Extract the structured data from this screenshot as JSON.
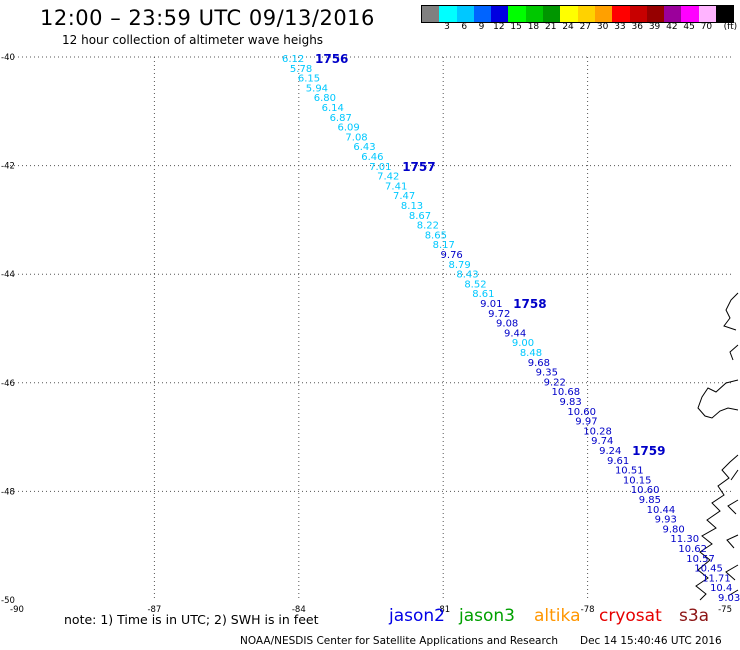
{
  "header": {
    "title": "12:00 – 23:59 UTC 09/13/2016",
    "subtitle": "12 hour collection of altimeter wave heighs"
  },
  "legend": {
    "unit": "(ft)",
    "swatches": [
      {
        "color": "#808080",
        "label": ""
      },
      {
        "color": "#00ffff",
        "label": "3"
      },
      {
        "color": "#00c8ff",
        "label": "6"
      },
      {
        "color": "#0064ff",
        "label": "9"
      },
      {
        "color": "#0000e0",
        "label": "12"
      },
      {
        "color": "#00ff00",
        "label": "15"
      },
      {
        "color": "#00c800",
        "label": "18"
      },
      {
        "color": "#009600",
        "label": "21"
      },
      {
        "color": "#ffff00",
        "label": "24"
      },
      {
        "color": "#ffd200",
        "label": "27"
      },
      {
        "color": "#ffa000",
        "label": "30"
      },
      {
        "color": "#ff0000",
        "label": "33"
      },
      {
        "color": "#c80000",
        "label": "36"
      },
      {
        "color": "#960000",
        "label": "39"
      },
      {
        "color": "#9b009b",
        "label": "42"
      },
      {
        "color": "#ff00ff",
        "label": "45"
      },
      {
        "color": "#ffb4ff",
        "label": "70"
      },
      {
        "color": "#000000",
        "label": ""
      }
    ]
  },
  "map_data": {
    "lon_range": [
      -90,
      -75
    ],
    "lat_range": [
      -50,
      -40
    ],
    "lon_ticks": [
      "-90",
      "-87",
      "-84",
      "-81",
      "-78",
      "-75"
    ],
    "lat_ticks": [
      "-40",
      "-42",
      "-44",
      "-46",
      "-48",
      "-50"
    ],
    "colors": {
      "light": "#00c8ff",
      "dark": "#0000c8"
    },
    "track": [
      {
        "value": "6.12",
        "shade": "light"
      },
      {
        "value": "5.78",
        "shade": "light"
      },
      {
        "value": "6.15",
        "shade": "light"
      },
      {
        "value": "5.94",
        "shade": "light"
      },
      {
        "value": "6.80",
        "shade": "light"
      },
      {
        "value": "6.14",
        "shade": "light"
      },
      {
        "value": "6.87",
        "shade": "light"
      },
      {
        "value": "6.09",
        "shade": "light"
      },
      {
        "value": "7.08",
        "shade": "light"
      },
      {
        "value": "6.43",
        "shade": "light"
      },
      {
        "value": "6.46",
        "shade": "light"
      },
      {
        "value": "7.01",
        "shade": "light"
      },
      {
        "value": "7.42",
        "shade": "light"
      },
      {
        "value": "7.41",
        "shade": "light"
      },
      {
        "value": "7.47",
        "shade": "light"
      },
      {
        "value": "8.13",
        "shade": "light"
      },
      {
        "value": "8.67",
        "shade": "light"
      },
      {
        "value": "8.22",
        "shade": "light"
      },
      {
        "value": "8.65",
        "shade": "light"
      },
      {
        "value": "8.17",
        "shade": "light"
      },
      {
        "value": "9.76",
        "shade": "dark"
      },
      {
        "value": "8.79",
        "shade": "light"
      },
      {
        "value": "8.43",
        "shade": "light"
      },
      {
        "value": "8.52",
        "shade": "light"
      },
      {
        "value": "8.61",
        "shade": "light"
      },
      {
        "value": "9.01",
        "shade": "dark"
      },
      {
        "value": "9.72",
        "shade": "dark"
      },
      {
        "value": "9.08",
        "shade": "dark"
      },
      {
        "value": "9.44",
        "shade": "dark"
      },
      {
        "value": "9.00",
        "shade": "light"
      },
      {
        "value": "8.48",
        "shade": "light"
      },
      {
        "value": "9.68",
        "shade": "dark"
      },
      {
        "value": "9.35",
        "shade": "dark"
      },
      {
        "value": "9.22",
        "shade": "dark"
      },
      {
        "value": "10.68",
        "shade": "dark"
      },
      {
        "value": "9.83",
        "shade": "dark"
      },
      {
        "value": "10.60",
        "shade": "dark"
      },
      {
        "value": "9.97",
        "shade": "dark"
      },
      {
        "value": "10.28",
        "shade": "dark"
      },
      {
        "value": "9.74",
        "shade": "dark"
      },
      {
        "value": "9.24",
        "shade": "dark"
      },
      {
        "value": "9.61",
        "shade": "dark"
      },
      {
        "value": "10.51",
        "shade": "dark"
      },
      {
        "value": "10.15",
        "shade": "dark"
      },
      {
        "value": "10.60",
        "shade": "dark"
      },
      {
        "value": "9.85",
        "shade": "dark"
      },
      {
        "value": "10.44",
        "shade": "dark"
      },
      {
        "value": "9.93",
        "shade": "dark"
      },
      {
        "value": "9.80",
        "shade": "dark"
      },
      {
        "value": "11.30",
        "shade": "dark"
      },
      {
        "value": "10.62",
        "shade": "dark"
      },
      {
        "value": "10.57",
        "shade": "dark"
      },
      {
        "value": "10.45",
        "shade": "dark"
      },
      {
        "value": "11.71",
        "shade": "dark"
      },
      {
        "value": "10.4",
        "shade": "dark"
      },
      {
        "value": "9.03",
        "shade": "dark"
      }
    ],
    "time_labels": [
      {
        "text": "1756",
        "at_index": 0
      },
      {
        "text": "1757",
        "at_index": 11
      },
      {
        "text": "1758",
        "at_index": 25
      },
      {
        "text": "1759",
        "at_index": 40
      }
    ]
  },
  "notes": {
    "text": "note:  1) Time is in UTC;  2) SWH is in feet"
  },
  "satellites": [
    {
      "name": "jason2",
      "color": "#0000e6"
    },
    {
      "name": "jason3",
      "color": "#00a000"
    },
    {
      "name": "altika",
      "color": "#ff9600"
    },
    {
      "name": "cryosat",
      "color": "#e60000"
    },
    {
      "name": "s3a",
      "color": "#8c1414"
    }
  ],
  "footer": {
    "left": "NOAA/NESDIS Center for Satellite Applications and Research",
    "right": "Dec 14 15:40:46 UTC 2016"
  }
}
